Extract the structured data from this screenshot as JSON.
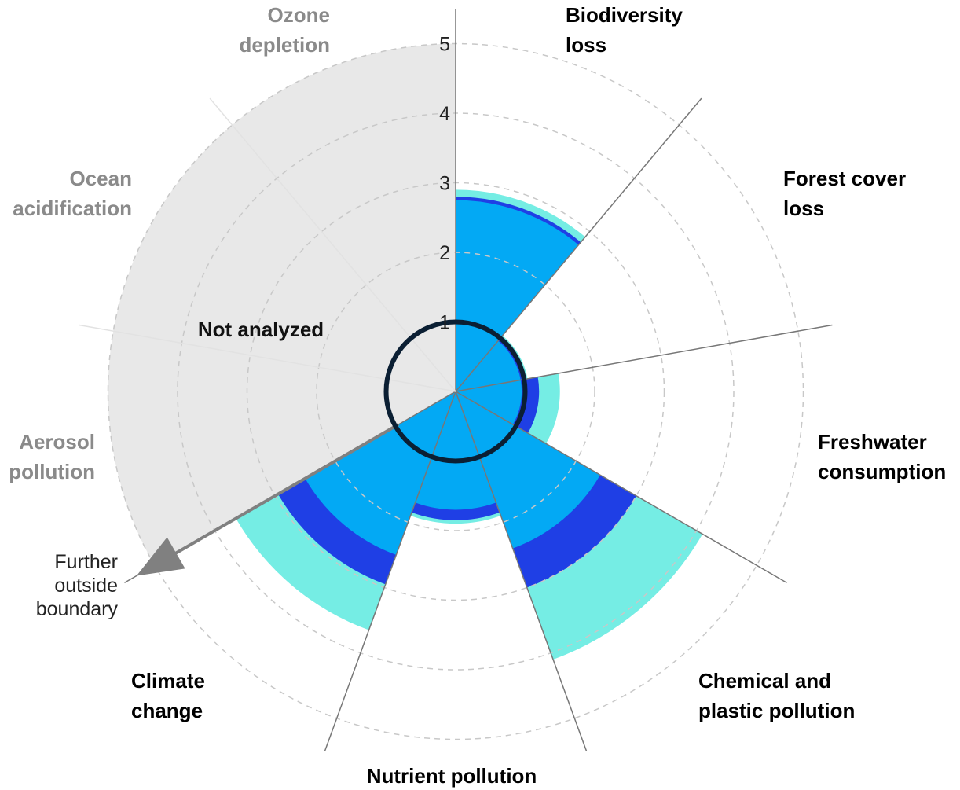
{
  "chart_data": {
    "type": "radial-bar",
    "title": "",
    "r_ticks": [
      1,
      2,
      3,
      4,
      5
    ],
    "r_max": 5,
    "boundary_value": 1,
    "not_analyzed_label": "Not analyzed",
    "arrow_label": [
      "Further",
      "outside",
      "boundary"
    ],
    "colors": {
      "base": "#03A9F4",
      "mid": "#1F3FE5",
      "outer": "#75EDE4",
      "boundary": "#0B1F33",
      "not_analyzed": "#E8E8E8",
      "label_active": "#000000",
      "label_inactive": "#8A8A8A",
      "gridline": "#C8C8C8",
      "axis": "#777777"
    },
    "categories": [
      {
        "name": [
          "Biodiversity",
          "loss"
        ],
        "analyzed": true,
        "values": [
          2.75,
          2.8,
          2.9
        ]
      },
      {
        "name": [
          "Forest cover",
          "loss"
        ],
        "analyzed": true,
        "values": [
          0.95,
          1.0,
          1.05
        ]
      },
      {
        "name": [
          "Freshwater",
          "consumption"
        ],
        "analyzed": true,
        "values": [
          0.95,
          1.2,
          1.5
        ]
      },
      {
        "name": [
          "Chemical and",
          "plastic pollution"
        ],
        "analyzed": true,
        "values": [
          2.4,
          3.0,
          4.1
        ]
      },
      {
        "name": [
          "Nutrient pollution"
        ],
        "analyzed": true,
        "values": [
          1.7,
          1.85,
          1.9
        ]
      },
      {
        "name": [
          "Climate",
          "change"
        ],
        "analyzed": true,
        "values": [
          2.5,
          2.95,
          3.65
        ]
      },
      {
        "name": [
          "Aerosol",
          "pollution"
        ],
        "analyzed": false,
        "values": []
      },
      {
        "name": [
          "Ocean",
          "acidification"
        ],
        "analyzed": false,
        "values": []
      },
      {
        "name": [
          "Ozone",
          "depletion"
        ],
        "analyzed": false,
        "values": []
      }
    ]
  }
}
